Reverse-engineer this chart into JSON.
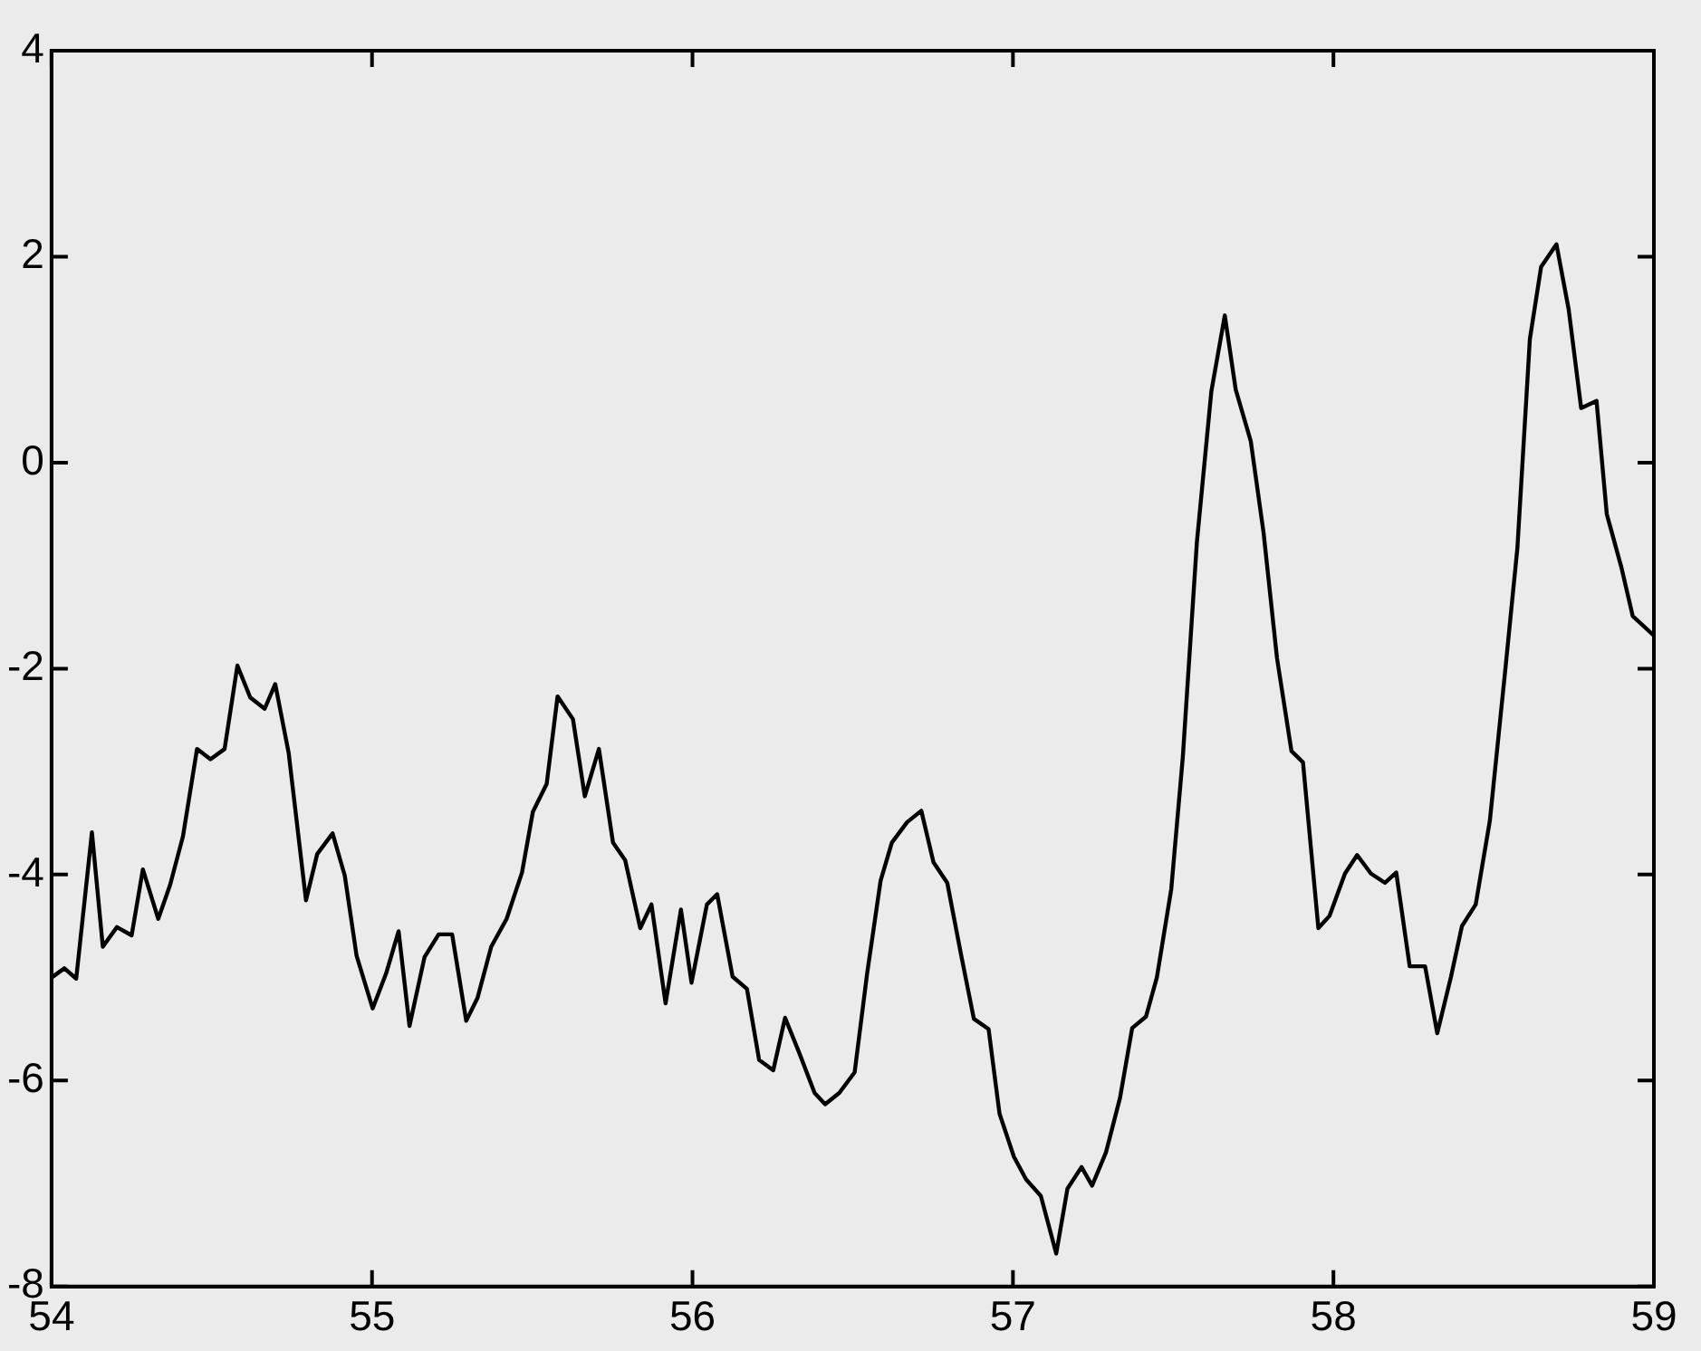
{
  "chart_data": {
    "type": "line",
    "xlim": [
      54,
      59
    ],
    "ylim": [
      -8,
      4
    ],
    "xticks": [
      54,
      55,
      56,
      57,
      58,
      59
    ],
    "yticks": [
      -8,
      -6,
      -4,
      -2,
      0,
      2,
      4
    ],
    "grid": false,
    "legend": false,
    "marker": "none",
    "line_style": "solid",
    "x": [
      54.0,
      54.04,
      54.077,
      54.126,
      54.16,
      54.204,
      54.25,
      54.285,
      54.333,
      54.37,
      54.41,
      54.454,
      54.496,
      54.54,
      54.58,
      54.62,
      54.665,
      54.698,
      54.74,
      54.794,
      54.829,
      54.877,
      54.915,
      54.952,
      55.002,
      55.044,
      55.083,
      55.117,
      55.164,
      55.208,
      55.25,
      55.294,
      55.329,
      55.372,
      55.42,
      55.468,
      55.502,
      55.545,
      55.579,
      55.627,
      55.664,
      55.708,
      55.752,
      55.79,
      55.837,
      55.872,
      55.916,
      55.964,
      55.997,
      56.045,
      56.077,
      56.125,
      56.17,
      56.208,
      56.252,
      56.289,
      56.333,
      56.381,
      56.414,
      56.458,
      56.506,
      56.545,
      56.587,
      56.622,
      56.67,
      56.714,
      56.752,
      56.795,
      56.837,
      56.878,
      56.924,
      56.958,
      57.003,
      57.041,
      57.087,
      57.135,
      57.17,
      57.214,
      57.247,
      57.29,
      57.334,
      57.372,
      57.415,
      57.449,
      57.494,
      57.53,
      57.574,
      57.619,
      57.661,
      57.695,
      57.742,
      57.782,
      57.824,
      57.869,
      57.905,
      57.953,
      57.988,
      58.036,
      58.074,
      58.117,
      58.161,
      58.196,
      58.238,
      58.286,
      58.324,
      58.367,
      58.401,
      58.444,
      58.488,
      58.536,
      58.574,
      58.613,
      58.648,
      58.696,
      58.734,
      58.773,
      58.821,
      58.853,
      58.898,
      58.934,
      59.0
    ],
    "series": [
      {
        "color": "#000000",
        "values": [
          -5.0,
          -4.91,
          -5.01,
          -3.59,
          -4.7,
          -4.51,
          -4.59,
          -3.95,
          -4.43,
          -4.1,
          -3.63,
          -2.78,
          -2.88,
          -2.78,
          -1.97,
          -2.28,
          -2.39,
          -2.15,
          -2.82,
          -4.25,
          -3.8,
          -3.6,
          -4.01,
          -4.79,
          -5.3,
          -4.96,
          -4.55,
          -5.47,
          -4.8,
          -4.58,
          -4.58,
          -5.42,
          -5.2,
          -4.7,
          -4.43,
          -3.98,
          -3.39,
          -3.12,
          -2.27,
          -2.49,
          -3.24,
          -2.78,
          -3.69,
          -3.86,
          -4.52,
          -4.29,
          -5.25,
          -4.34,
          -5.05,
          -4.29,
          -4.19,
          -4.99,
          -5.11,
          -5.8,
          -5.9,
          -5.39,
          -5.73,
          -6.12,
          -6.23,
          -6.12,
          -5.92,
          -4.96,
          -4.06,
          -3.69,
          -3.49,
          -3.38,
          -3.88,
          -4.08,
          -4.76,
          -5.4,
          -5.5,
          -6.32,
          -6.74,
          -6.96,
          -7.12,
          -7.68,
          -7.05,
          -6.84,
          -7.02,
          -6.7,
          -6.17,
          -5.49,
          -5.38,
          -5.0,
          -4.14,
          -2.86,
          -0.77,
          0.69,
          1.43,
          0.71,
          0.21,
          -0.68,
          -1.9,
          -2.8,
          -2.91,
          -4.52,
          -4.4,
          -3.99,
          -3.81,
          -3.99,
          -4.08,
          -3.98,
          -4.89,
          -4.89,
          -5.54,
          -4.99,
          -4.5,
          -4.29,
          -3.48,
          -2.02,
          -0.83,
          1.2,
          1.9,
          2.12,
          1.49,
          0.53,
          0.6,
          -0.5,
          -1.01,
          -1.49,
          -1.68
        ]
      }
    ]
  }
}
